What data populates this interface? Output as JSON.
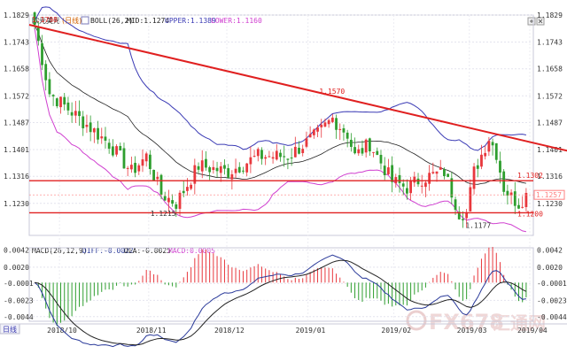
{
  "chart_data": [
    {
      "type": "candlestick",
      "title": "欧元美元",
      "period": "日线",
      "indicator": {
        "name": "BOLL(26,2)",
        "mid_label": "MID:",
        "mid": "1.1274",
        "upper_label": "UPPER:",
        "upper": "1.1389",
        "lower_label": "LOWER:",
        "lower": "1.1160"
      },
      "ylim": [
        1.1128,
        1.1829
      ],
      "y_ticks": [
        "1.1829",
        "1.1743",
        "1.1658",
        "1.1572",
        "1.1487",
        "1.1401",
        "1.1316",
        "1.1230"
      ],
      "x_ticks": [
        {
          "label": "2018/10",
          "t": 0.06
        },
        {
          "label": "2018/11",
          "t": 0.237
        },
        {
          "label": "2018/12",
          "t": 0.392
        },
        {
          "label": "2019/01",
          "t": 0.553
        },
        {
          "label": "2019/02",
          "t": 0.723
        },
        {
          "label": "2019/03",
          "t": 0.873
        },
        {
          "label": "2019/04",
          "t": 1.01
        }
      ],
      "annotations": [
        {
          "label": "1.1798",
          "t": 0.0,
          "value": 1.1798,
          "color": "#e02020"
        },
        {
          "label": "1.1570",
          "t": 0.57,
          "value": 1.157,
          "color": "#e02020"
        },
        {
          "label": "1.1215",
          "t": 0.235,
          "value": 1.1215,
          "color": "#333333"
        },
        {
          "label": "1.1177",
          "t": 0.86,
          "value": 1.1177,
          "color": "#333333"
        }
      ],
      "horizontal_levels": [
        {
          "label": "1.1302",
          "value": 1.1302,
          "color": "#e02020"
        },
        {
          "label": "1.1200",
          "value": 1.12,
          "color": "#e02020"
        }
      ],
      "last_price": {
        "label": "1.1257",
        "value": 1.1257,
        "color": "#ff8080"
      },
      "trendline": {
        "from": [
          0.0,
          1.1798
        ],
        "to": [
          1.1,
          1.1385
        ],
        "color": "#e02020"
      },
      "colors": {
        "up": "#e8383d",
        "down": "#2e9e2e",
        "upper": "#3b3bb5",
        "mid": "#222222",
        "lower": "#d040d0"
      }
    },
    {
      "type": "macd",
      "title": "MACD(26,12,9)",
      "diff_label": "DIFF:",
      "diff": "-0.0022",
      "dea_label": "DEA:",
      "dea": "-0.0025",
      "macd_label": "MACD:",
      "macd": "0.0005",
      "ylim": [
        -0.005,
        0.0045
      ],
      "y_ticks": [
        "0.0042",
        "0.0020",
        "-0.0001",
        "-0.0023",
        "-0.0044"
      ],
      "colors": {
        "diff": "#2a3a9a",
        "dea": "#222222",
        "hist_pos": "#e8383d",
        "hist_neg": "#2e9e2e"
      }
    }
  ],
  "bottom_tab": "日线",
  "watermark": {
    "brand": "FX678",
    "name": "汇通网"
  }
}
